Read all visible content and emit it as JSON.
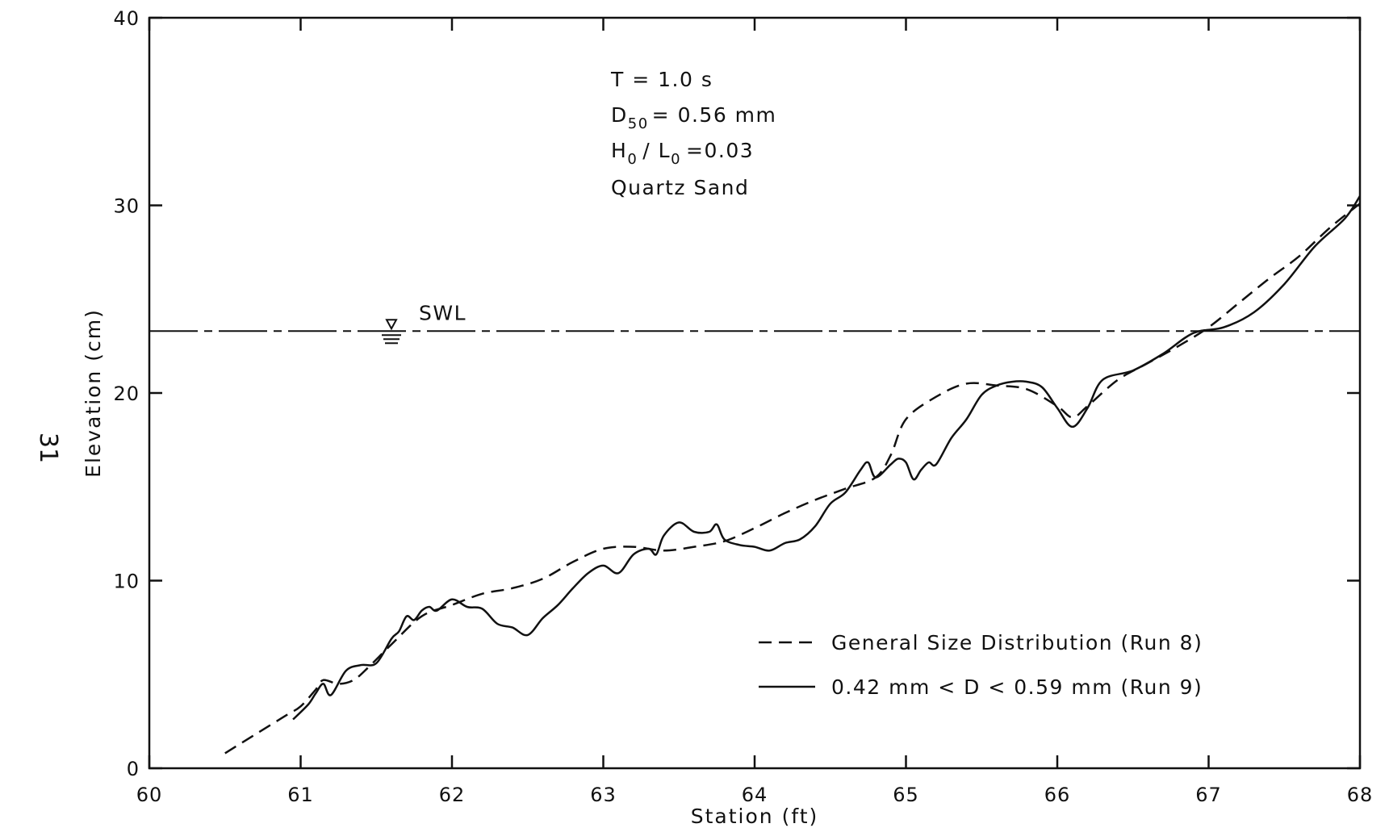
{
  "page_number": "31",
  "annotations": {
    "line1": "T = 1.0 s",
    "line2_main": "D",
    "line2_sub": "50",
    "line2_rest": "= 0.56 mm",
    "line3_h": "H",
    "line3_h_sub": "0",
    "line3_slash": "/ L",
    "line3_l_sub": "0",
    "line3_rest": "=0.03",
    "line4": "Quartz Sand",
    "swl_label": "SWL"
  },
  "chart_data": {
    "type": "line",
    "title": "",
    "xlabel": "Station (ft)",
    "ylabel": "Elevation (cm)",
    "xlim": [
      60,
      68
    ],
    "ylim": [
      0,
      40
    ],
    "xticks": [
      60,
      61,
      62,
      63,
      64,
      65,
      66,
      67,
      68
    ],
    "yticks": [
      0,
      10,
      20,
      30,
      40
    ],
    "xtick_labels": [
      "60",
      "61",
      "62",
      "63",
      "64",
      "65",
      "66",
      "67",
      "68"
    ],
    "ytick_labels": [
      "0",
      "10",
      "20",
      "30",
      "40"
    ],
    "grid": false,
    "legend_position": "bottom-right",
    "swl": {
      "label": "SWL",
      "y": 23.3
    },
    "series": [
      {
        "name": "General Size Distribution (Run 8)",
        "style": "dashed",
        "color": "#111111",
        "x": [
          60.5,
          60.7,
          60.9,
          61.0,
          61.1,
          61.15,
          61.25,
          61.35,
          61.45,
          61.6,
          61.8,
          62.0,
          62.2,
          62.4,
          62.6,
          62.8,
          63.0,
          63.2,
          63.4,
          63.6,
          63.8,
          64.0,
          64.2,
          64.4,
          64.6,
          64.8,
          64.9,
          65.0,
          65.2,
          65.4,
          65.6,
          65.8,
          66.0,
          66.1,
          66.2,
          66.4,
          66.6,
          66.8,
          67.0,
          67.2,
          67.4,
          67.6,
          67.8,
          68.0
        ],
        "y": [
          0.8,
          1.8,
          2.8,
          3.3,
          4.2,
          4.7,
          4.5,
          4.7,
          5.4,
          6.6,
          8.1,
          8.7,
          9.3,
          9.6,
          10.1,
          11.0,
          11.7,
          11.8,
          11.6,
          11.8,
          12.1,
          12.8,
          13.6,
          14.3,
          14.9,
          15.5,
          16.7,
          18.6,
          19.8,
          20.5,
          20.4,
          20.2,
          19.3,
          18.7,
          19.3,
          20.7,
          21.6,
          22.5,
          23.5,
          24.8,
          26.1,
          27.3,
          28.8,
          30.1
        ]
      },
      {
        "name": "0.42 mm < D < 0.59 mm (Run 9)",
        "style": "solid",
        "color": "#111111",
        "x": [
          60.95,
          61.05,
          61.1,
          61.15,
          61.2,
          61.3,
          61.4,
          61.5,
          61.6,
          61.65,
          61.7,
          61.75,
          61.8,
          61.85,
          61.9,
          62.0,
          62.1,
          62.2,
          62.3,
          62.4,
          62.5,
          62.6,
          62.7,
          62.8,
          62.9,
          63.0,
          63.1,
          63.2,
          63.3,
          63.35,
          63.4,
          63.5,
          63.6,
          63.7,
          63.75,
          63.8,
          63.9,
          64.0,
          64.1,
          64.2,
          64.3,
          64.4,
          64.5,
          64.6,
          64.7,
          64.75,
          64.8,
          64.9,
          64.95,
          65.0,
          65.05,
          65.1,
          65.15,
          65.2,
          65.3,
          65.4,
          65.5,
          65.6,
          65.7,
          65.8,
          65.9,
          66.0,
          66.1,
          66.2,
          66.3,
          66.5,
          66.7,
          66.9,
          67.1,
          67.3,
          67.5,
          67.7,
          67.9,
          68.0
        ],
        "y": [
          2.6,
          3.4,
          4.0,
          4.5,
          3.9,
          5.2,
          5.5,
          5.6,
          6.9,
          7.3,
          8.1,
          7.9,
          8.4,
          8.6,
          8.4,
          9.0,
          8.6,
          8.5,
          7.7,
          7.5,
          7.1,
          8.0,
          8.7,
          9.6,
          10.4,
          10.8,
          10.4,
          11.4,
          11.7,
          11.4,
          12.4,
          13.1,
          12.6,
          12.6,
          13.0,
          12.2,
          11.9,
          11.8,
          11.6,
          12.0,
          12.2,
          12.9,
          14.1,
          14.7,
          15.9,
          16.3,
          15.5,
          16.2,
          16.5,
          16.3,
          15.4,
          15.9,
          16.3,
          16.2,
          17.6,
          18.6,
          19.9,
          20.4,
          20.6,
          20.6,
          20.3,
          19.2,
          18.2,
          19.2,
          20.7,
          21.2,
          22.1,
          23.2,
          23.5,
          24.3,
          25.8,
          27.8,
          29.3,
          30.5
        ]
      }
    ]
  }
}
